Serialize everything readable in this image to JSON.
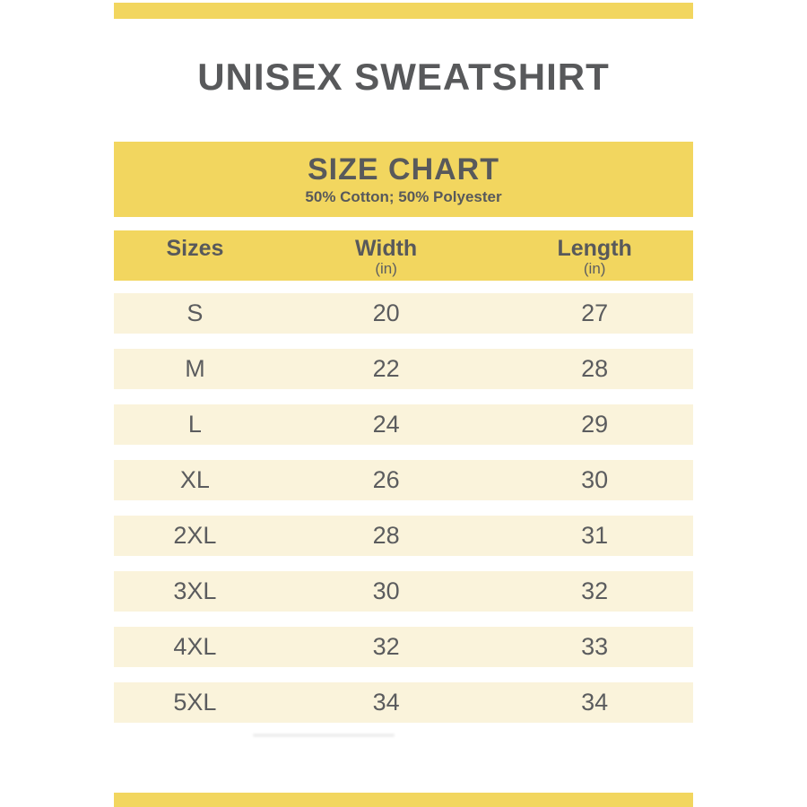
{
  "theme": {
    "accent_yellow": "#F2D65F",
    "row_cream": "#FAF3DB",
    "heading_ink": "#58595B",
    "row_ink": "#5B5C5E"
  },
  "page": {
    "title": "UNISEX SWEATSHIRT"
  },
  "size_chart": {
    "heading": "SIZE CHART",
    "subheading": "50% Cotton; 50% Polyester",
    "columns": [
      {
        "label": "Sizes",
        "unit": ""
      },
      {
        "label": "Width",
        "unit": "(in)"
      },
      {
        "label": "Length",
        "unit": "(in)"
      }
    ],
    "rows": [
      {
        "size": "S",
        "width": "20",
        "length": "27"
      },
      {
        "size": "M",
        "width": "22",
        "length": "28"
      },
      {
        "size": "L",
        "width": "24",
        "length": "29"
      },
      {
        "size": "XL",
        "width": "26",
        "length": "30"
      },
      {
        "size": "2XL",
        "width": "28",
        "length": "31"
      },
      {
        "size": "3XL",
        "width": "30",
        "length": "32"
      },
      {
        "size": "4XL",
        "width": "32",
        "length": "33"
      },
      {
        "size": "5XL",
        "width": "34",
        "length": "34"
      }
    ]
  },
  "chart_data": {
    "type": "table",
    "title": "SIZE CHART",
    "subtitle": "50% Cotton; 50% Polyester",
    "columns": [
      "Sizes",
      "Width (in)",
      "Length (in)"
    ],
    "rows": [
      [
        "S",
        20,
        27
      ],
      [
        "M",
        22,
        28
      ],
      [
        "L",
        24,
        29
      ],
      [
        "XL",
        26,
        30
      ],
      [
        "2XL",
        28,
        31
      ],
      [
        "3XL",
        30,
        32
      ],
      [
        "4XL",
        32,
        33
      ],
      [
        "5XL",
        34,
        34
      ]
    ]
  }
}
